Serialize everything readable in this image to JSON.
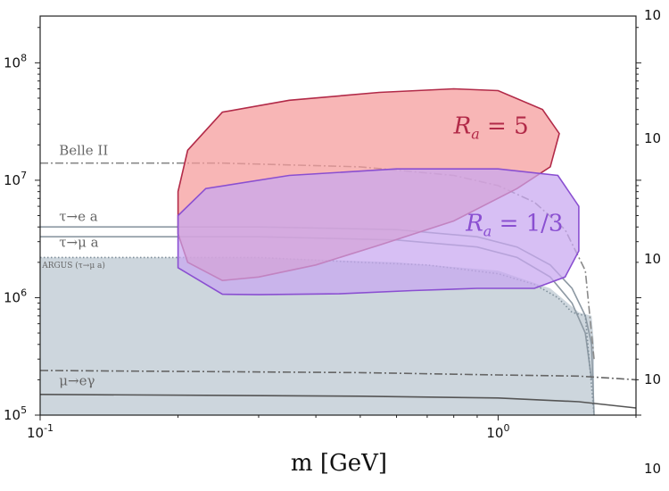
{
  "chart_data": {
    "type": "area",
    "xscale": "log",
    "yscale": "log",
    "xlim": [
      0.1,
      2.0
    ],
    "ylim": [
      100000,
      250000000
    ],
    "xlabel": "m [GeV]",
    "xticks": [
      {
        "value": 0.1,
        "base": "10",
        "exp": "-1"
      },
      {
        "value": 1.0,
        "base": "10",
        "exp": "0"
      }
    ],
    "yticks": [
      {
        "value": 100000,
        "base": "10",
        "exp": "5"
      },
      {
        "value": 1000000,
        "base": "10",
        "exp": "6"
      },
      {
        "value": 10000000,
        "base": "10",
        "exp": "7"
      },
      {
        "value": 100000000,
        "base": "10",
        "exp": "8"
      }
    ],
    "right_axis_partial_labels": [
      "10",
      "10",
      "10",
      "10",
      "10"
    ],
    "excluded_region": {
      "color": "#cdd6dd",
      "x": [
        0.1,
        0.3,
        0.6,
        1.0,
        1.3,
        1.5,
        1.6,
        1.62,
        1.62
      ],
      "y": [
        2200000,
        2200000,
        2000000,
        1700000,
        1200000,
        750000,
        700000,
        400000,
        100000
      ]
    },
    "constraint_lines": [
      {
        "label": "Belle II",
        "style": "dashdot",
        "color": "#8a8a8a",
        "x": [
          0.1,
          0.25,
          0.5,
          0.8,
          1.0,
          1.2,
          1.4,
          1.55,
          1.62
        ],
        "y": [
          14000000,
          14000000,
          13000000,
          11000000,
          9000000,
          6500000,
          3800000,
          1700000,
          300000
        ]
      },
      {
        "label": "τ→e a",
        "style": "solid",
        "color": "#8d99a3",
        "x": [
          0.1,
          0.3,
          0.6,
          0.9,
          1.1,
          1.3,
          1.45,
          1.55,
          1.6,
          1.62
        ],
        "y": [
          4000000,
          4000000,
          3800000,
          3300000,
          2700000,
          1900000,
          1200000,
          700000,
          400000,
          100000
        ]
      },
      {
        "label": "τ→μ a",
        "style": "solid",
        "color": "#8d99a3",
        "x": [
          0.1,
          0.3,
          0.6,
          0.9,
          1.1,
          1.3,
          1.45,
          1.55,
          1.6
        ],
        "y": [
          3300000,
          3300000,
          3100000,
          2700000,
          2200000,
          1500000,
          900000,
          500000,
          200000
        ]
      },
      {
        "label": "ARGUS (τ→μ a)",
        "style": "dotted",
        "color": "#7f8f9a",
        "x": [
          0.1,
          0.3,
          0.5,
          0.7,
          1.0,
          1.2,
          1.35,
          1.45,
          1.55,
          1.62
        ],
        "y": [
          2200000,
          2200000,
          2000000,
          1900000,
          1600000,
          1300000,
          1000000,
          750000,
          700000,
          100000
        ]
      },
      {
        "label": "μ→eγ",
        "style": "dashdot",
        "color": "#666666",
        "x": [
          0.1,
          0.5,
          1.0,
          1.5,
          2.0
        ],
        "y": [
          240000,
          230000,
          220000,
          215000,
          200000
        ]
      },
      {
        "label": "",
        "style": "solid",
        "color": "#555555",
        "x": [
          0.1,
          0.5,
          1.0,
          1.5,
          2.0
        ],
        "y": [
          150000,
          145000,
          140000,
          130000,
          115000
        ]
      }
    ],
    "series": [
      {
        "name": "R_a = 5",
        "label_text": "= 5",
        "fill": "#f59a9a",
        "stroke": "#b22a48",
        "opacity": 0.72,
        "label_x": 0.8,
        "label_y": 25000000,
        "x": [
          0.2,
          0.21,
          0.25,
          0.35,
          0.55,
          0.8,
          1.0,
          1.25,
          1.36,
          1.3,
          1.1,
          0.8,
          0.55,
          0.4,
          0.3,
          0.25,
          0.21,
          0.2
        ],
        "y": [
          8000000,
          18000000,
          38000000,
          48000000,
          56000000,
          60000000,
          58000000,
          40000000,
          25000000,
          13000000,
          8500000,
          4500000,
          2800000,
          1900000,
          1500000,
          1400000,
          2000000,
          3500000
        ]
      },
      {
        "name": "R_a = 1/3",
        "label_text": "= 1/3",
        "fill": "#c8a6f0",
        "stroke": "#8a4fd1",
        "opacity": 0.72,
        "label_x": 0.85,
        "label_y": 3700000,
        "x": [
          0.2,
          0.23,
          0.35,
          0.6,
          1.0,
          1.35,
          1.5,
          1.5,
          1.4,
          1.2,
          0.9,
          0.65,
          0.45,
          0.3,
          0.25,
          0.2
        ],
        "y": [
          5000000,
          8500000,
          11000000,
          12500000,
          12500000,
          11000000,
          6000000,
          2500000,
          1500000,
          1200000,
          1200000,
          1150000,
          1080000,
          1060000,
          1070000,
          1800000
        ]
      }
    ],
    "annotations": [
      {
        "text": "Belle II",
        "x": 0.11,
        "y": 16500000,
        "size": 15
      },
      {
        "text": "τ→e a",
        "x": 0.11,
        "y": 4500000,
        "size": 15
      },
      {
        "text": "τ→μ a",
        "x": 0.11,
        "y": 2700000,
        "size": 15
      },
      {
        "text": "ARGUS (τ→μ a)",
        "x": 0.101,
        "y": 1800000,
        "size": 9
      },
      {
        "text": "μ→eγ",
        "x": 0.11,
        "y": 180000,
        "size": 15
      }
    ]
  }
}
